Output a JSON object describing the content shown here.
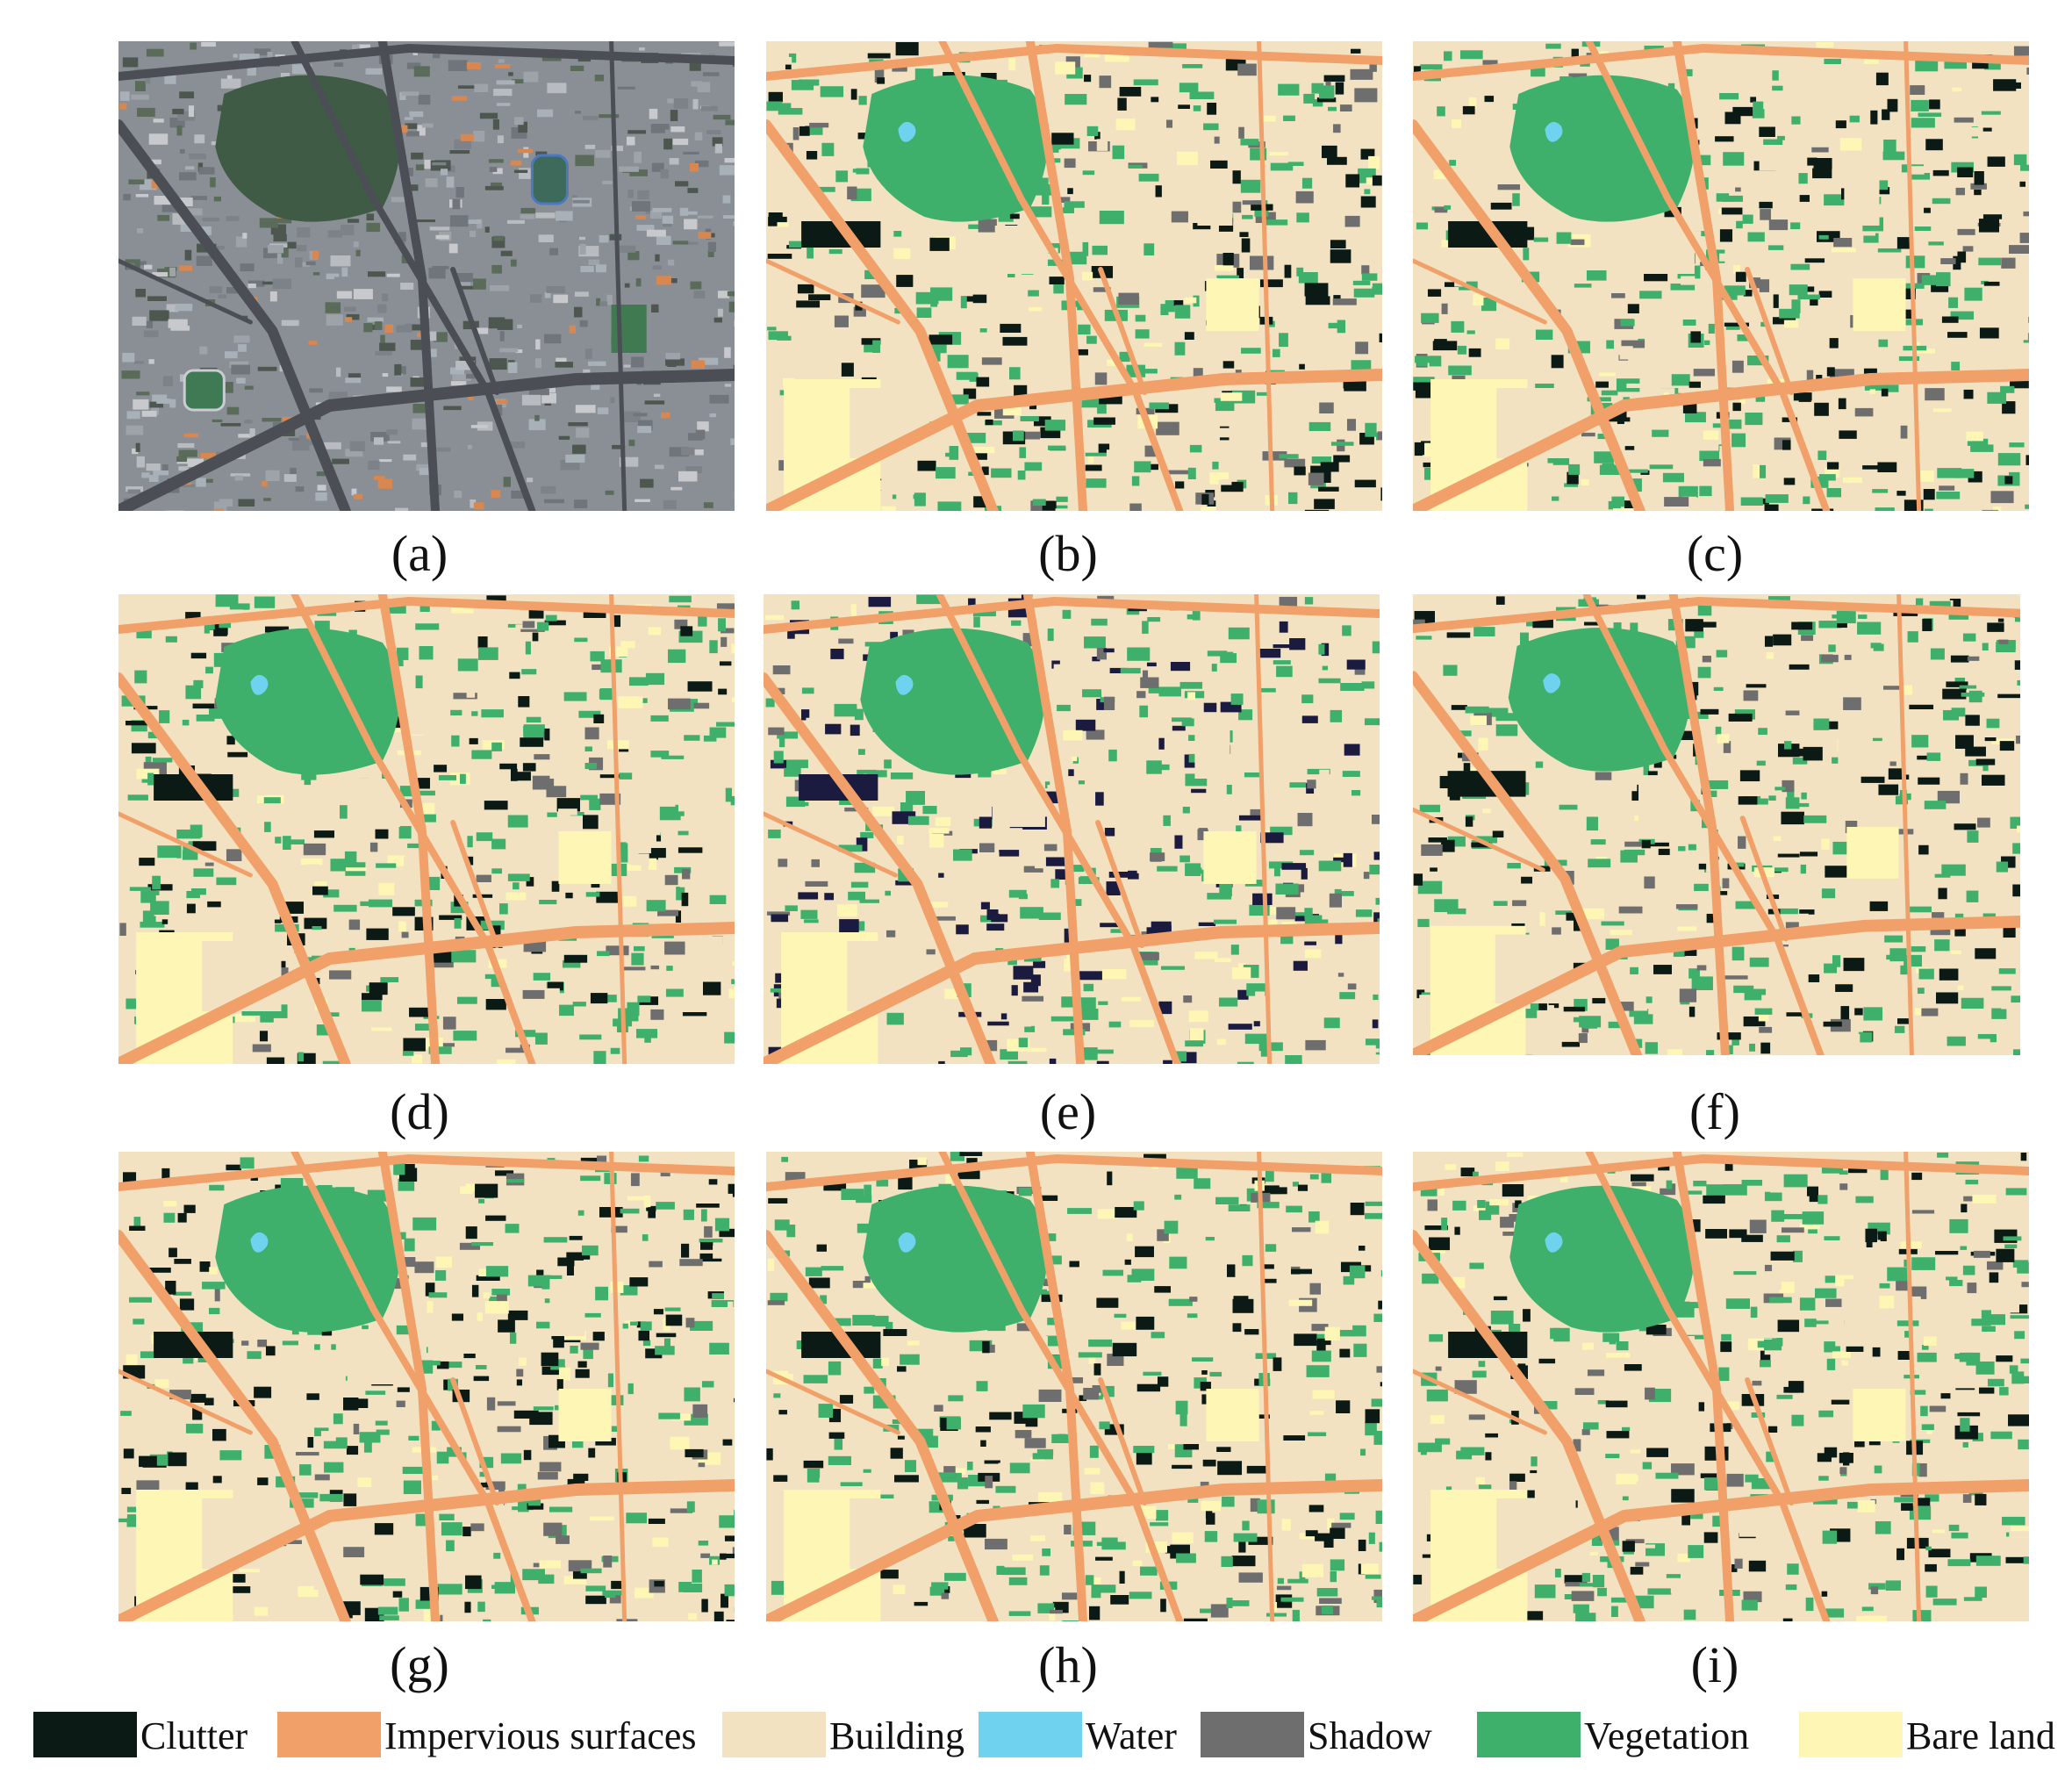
{
  "figure": {
    "panels": [
      {
        "id": "a",
        "caption": "(a)",
        "kind": "satellite"
      },
      {
        "id": "b",
        "caption": "(b)",
        "kind": "classification"
      },
      {
        "id": "c",
        "caption": "(c)",
        "kind": "classification"
      },
      {
        "id": "d",
        "caption": "(d)",
        "kind": "classification"
      },
      {
        "id": "e",
        "caption": "(e)",
        "kind": "classification",
        "clutter_override": "#1b1b40"
      },
      {
        "id": "f",
        "caption": "(f)",
        "kind": "classification"
      },
      {
        "id": "g",
        "caption": "(g)",
        "kind": "classification"
      },
      {
        "id": "h",
        "caption": "(h)",
        "kind": "classification"
      },
      {
        "id": "i",
        "caption": "(i)",
        "kind": "classification"
      }
    ],
    "legend": [
      {
        "label": "Clutter",
        "color": "#0b1a14"
      },
      {
        "label": "Impervious surfaces",
        "color": "#f0a068"
      },
      {
        "label": "Building",
        "color": "#f2e2c2"
      },
      {
        "label": "Water",
        "color": "#6fd2ee"
      },
      {
        "label": "Shadow",
        "color": "#6e6e6e"
      },
      {
        "label": "Vegetation",
        "color": "#3fb06b"
      },
      {
        "label": "Bare land",
        "color": "#fdf6b4"
      }
    ]
  }
}
